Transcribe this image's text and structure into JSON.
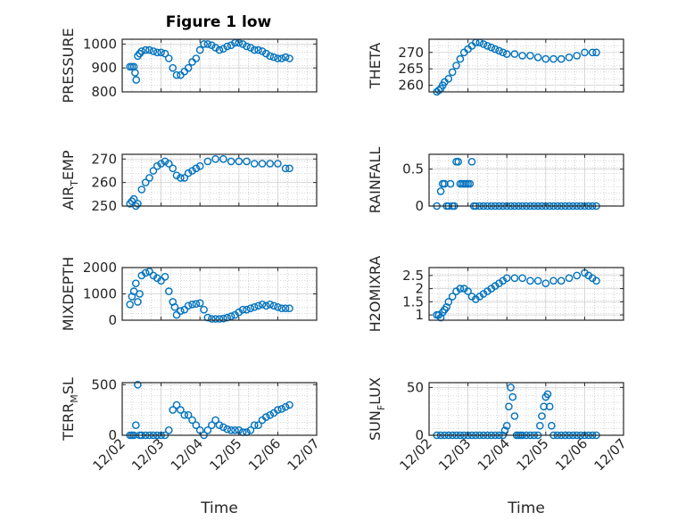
{
  "figure_title": "Figure 1 low",
  "colors": {
    "marker": "#0072BD",
    "axis": "#262626",
    "grid": "#b0b0b0",
    "background": "#ffffff"
  },
  "chart_data": [
    {
      "id": "pressure",
      "type": "scatter",
      "title": "Figure 1 low",
      "ylabel": "PRESSURE",
      "xlabel": "",
      "ylim": [
        800,
        1020
      ],
      "yticks": [
        800,
        900,
        1000
      ],
      "ytick_labels": [
        "800",
        "900",
        "1000"
      ],
      "xticks": [
        0,
        1,
        2,
        3,
        4,
        5
      ],
      "xtick_labels": [],
      "xlim": [
        0,
        5
      ],
      "grid": "minor",
      "x": [
        0.2,
        0.25,
        0.3,
        0.33,
        0.36,
        0.4,
        0.45,
        0.5,
        0.6,
        0.7,
        0.8,
        0.9,
        1.0,
        1.1,
        1.2,
        1.3,
        1.4,
        1.5,
        1.6,
        1.7,
        1.8,
        1.9,
        2.0,
        2.1,
        2.2,
        2.3,
        2.4,
        2.5,
        2.6,
        2.7,
        2.8,
        2.9,
        3.0,
        3.1,
        3.2,
        3.3,
        3.4,
        3.5,
        3.6,
        3.7,
        3.8,
        3.9,
        4.0,
        4.1,
        4.2,
        4.3
      ],
      "y": [
        905,
        905,
        905,
        880,
        850,
        950,
        960,
        970,
        975,
        975,
        970,
        965,
        965,
        960,
        940,
        900,
        870,
        870,
        885,
        900,
        925,
        940,
        975,
        1000,
        1000,
        995,
        985,
        975,
        980,
        990,
        995,
        1005,
        1005,
        1000,
        990,
        985,
        975,
        975,
        970,
        960,
        950,
        945,
        940,
        940,
        945,
        940
      ]
    },
    {
      "id": "theta",
      "type": "scatter",
      "ylabel": "THETA",
      "xlabel": "",
      "ylim": [
        258,
        274
      ],
      "yticks": [
        260,
        265,
        270
      ],
      "ytick_labels": [
        "260",
        "265",
        "270"
      ],
      "xticks": [
        0,
        1,
        2,
        3,
        4,
        5
      ],
      "xtick_labels": [],
      "xlim": [
        0,
        5
      ],
      "grid": "minor",
      "x": [
        0.2,
        0.25,
        0.3,
        0.35,
        0.4,
        0.5,
        0.6,
        0.7,
        0.8,
        0.9,
        1.0,
        1.1,
        1.2,
        1.3,
        1.4,
        1.5,
        1.6,
        1.7,
        1.8,
        1.9,
        2.0,
        2.2,
        2.4,
        2.6,
        2.8,
        3.0,
        3.2,
        3.4,
        3.6,
        3.8,
        4.0,
        4.2,
        4.3
      ],
      "y": [
        258,
        258.5,
        259,
        260,
        261,
        262,
        264,
        266,
        268,
        270,
        271,
        272,
        273,
        273,
        272.5,
        272,
        271.5,
        271,
        270.5,
        270,
        269.5,
        269.5,
        269,
        269,
        268.5,
        268,
        268,
        268,
        268.5,
        269,
        270,
        270,
        270
      ]
    },
    {
      "id": "air-temp",
      "type": "scatter",
      "ylabel": "AIR_TEMP",
      "ylabel_main": "AIR",
      "ylabel_sub": "T",
      "ylabel_tail": "EMP",
      "xlabel": "",
      "ylim": [
        250,
        272
      ],
      "yticks": [
        250,
        260,
        270
      ],
      "ytick_labels": [
        "250",
        "260",
        "270"
      ],
      "xticks": [
        0,
        1,
        2,
        3,
        4,
        5
      ],
      "xtick_labels": [],
      "xlim": [
        0,
        5
      ],
      "grid": "minor",
      "x": [
        0.2,
        0.25,
        0.3,
        0.35,
        0.4,
        0.5,
        0.6,
        0.7,
        0.8,
        0.9,
        1.0,
        1.1,
        1.2,
        1.3,
        1.4,
        1.5,
        1.6,
        1.7,
        1.8,
        1.9,
        2.0,
        2.2,
        2.4,
        2.6,
        2.8,
        3.0,
        3.2,
        3.4,
        3.6,
        3.8,
        4.0,
        4.2,
        4.3
      ],
      "y": [
        251,
        252,
        253,
        250,
        251,
        257,
        260,
        262,
        265,
        267,
        268,
        269,
        268,
        266,
        263,
        262,
        262,
        264,
        265,
        266,
        267,
        269,
        270,
        270,
        269,
        269,
        269,
        268,
        268,
        268,
        268,
        266,
        266
      ]
    },
    {
      "id": "rainfall",
      "type": "scatter",
      "ylabel": "RAINFALL",
      "xlabel": "",
      "ylim": [
        0,
        0.7
      ],
      "yticks": [
        0,
        0.5
      ],
      "ytick_labels": [
        "0",
        "0.5"
      ],
      "xticks": [
        0,
        1,
        2,
        3,
        4,
        5
      ],
      "xtick_labels": [],
      "xlim": [
        0,
        5
      ],
      "grid": "minor",
      "x": [
        0.2,
        0.3,
        0.35,
        0.4,
        0.45,
        0.5,
        0.55,
        0.6,
        0.65,
        0.7,
        0.75,
        0.8,
        0.85,
        0.9,
        0.95,
        1.0,
        1.05,
        1.1,
        1.15,
        1.2,
        1.3,
        1.4,
        1.5,
        1.6,
        1.7,
        1.8,
        1.9,
        2.0,
        2.1,
        2.2,
        2.3,
        2.4,
        2.5,
        2.6,
        2.7,
        2.8,
        2.9,
        3.0,
        3.1,
        3.2,
        3.3,
        3.4,
        3.5,
        3.6,
        3.7,
        3.8,
        3.9,
        4.0,
        4.1,
        4.2,
        4.3
      ],
      "y": [
        0,
        0.2,
        0.3,
        0.3,
        0,
        0,
        0.3,
        0,
        0,
        0.6,
        0.6,
        0.3,
        0.3,
        0.3,
        0.3,
        0.3,
        0.3,
        0.6,
        0,
        0,
        0,
        0,
        0,
        0,
        0,
        0,
        0,
        0,
        0,
        0,
        0,
        0,
        0,
        0,
        0,
        0,
        0,
        0,
        0,
        0,
        0,
        0,
        0,
        0,
        0,
        0,
        0,
        0,
        0,
        0,
        0
      ]
    },
    {
      "id": "mixdepth",
      "type": "scatter",
      "ylabel": "MIXDEPTH",
      "xlabel": "",
      "ylim": [
        0,
        2000
      ],
      "yticks": [
        0,
        1000,
        2000
      ],
      "ytick_labels": [
        "0",
        "1000",
        "2000"
      ],
      "xticks": [
        0,
        1,
        2,
        3,
        4,
        5
      ],
      "xtick_labels": [],
      "xlim": [
        0,
        5
      ],
      "grid": "minor",
      "x": [
        0.2,
        0.25,
        0.3,
        0.35,
        0.4,
        0.45,
        0.5,
        0.6,
        0.7,
        0.8,
        0.9,
        1.0,
        1.1,
        1.2,
        1.3,
        1.35,
        1.4,
        1.5,
        1.6,
        1.7,
        1.8,
        1.9,
        2.0,
        2.1,
        2.2,
        2.3,
        2.4,
        2.5,
        2.6,
        2.7,
        2.8,
        2.9,
        3.0,
        3.1,
        3.2,
        3.3,
        3.4,
        3.5,
        3.6,
        3.7,
        3.8,
        3.9,
        4.0,
        4.1,
        4.2,
        4.3
      ],
      "y": [
        600,
        900,
        1100,
        1400,
        700,
        1000,
        1700,
        1800,
        1850,
        1700,
        1600,
        1500,
        1650,
        1100,
        700,
        500,
        200,
        350,
        400,
        550,
        600,
        620,
        650,
        400,
        100,
        50,
        50,
        50,
        60,
        100,
        150,
        200,
        300,
        400,
        400,
        450,
        500,
        550,
        600,
        550,
        600,
        550,
        500,
        450,
        450,
        450
      ]
    },
    {
      "id": "h2omixra",
      "type": "scatter",
      "ylabel": "H2OMIXRA",
      "xlabel": "",
      "ylim": [
        0.8,
        2.8
      ],
      "yticks": [
        1,
        1.5,
        2,
        2.5
      ],
      "ytick_labels": [
        "1",
        "1.5",
        "2",
        "2.5"
      ],
      "xticks": [
        0,
        1,
        2,
        3,
        4,
        5
      ],
      "xtick_labels": [],
      "xlim": [
        0,
        5
      ],
      "grid": "minor",
      "x": [
        0.2,
        0.25,
        0.3,
        0.35,
        0.4,
        0.45,
        0.5,
        0.6,
        0.7,
        0.8,
        0.9,
        1.0,
        1.1,
        1.2,
        1.3,
        1.4,
        1.5,
        1.6,
        1.7,
        1.8,
        1.9,
        2.0,
        2.2,
        2.4,
        2.6,
        2.8,
        3.0,
        3.2,
        3.4,
        3.6,
        3.8,
        4.0,
        4.1,
        4.2,
        4.3
      ],
      "y": [
        1.0,
        1.0,
        0.9,
        1.1,
        1.2,
        1.3,
        1.5,
        1.7,
        1.9,
        2.0,
        2.0,
        1.9,
        1.7,
        1.6,
        1.7,
        1.8,
        1.9,
        2.0,
        2.1,
        2.2,
        2.3,
        2.4,
        2.4,
        2.4,
        2.3,
        2.3,
        2.2,
        2.3,
        2.3,
        2.4,
        2.5,
        2.6,
        2.5,
        2.4,
        2.3
      ]
    },
    {
      "id": "terr-msl",
      "type": "scatter",
      "ylabel": "TERR_MSL",
      "ylabel_main": "TERR",
      "ylabel_sub": "M",
      "ylabel_tail": "SL",
      "xlabel": "Time",
      "ylim": [
        0,
        520
      ],
      "yticks": [
        0,
        500
      ],
      "ytick_labels": [
        "0",
        "500"
      ],
      "xticks": [
        0,
        1,
        2,
        3,
        4,
        5
      ],
      "xtick_labels": [
        "12/02",
        "12/03",
        "12/04",
        "12/05",
        "12/06",
        "12/07"
      ],
      "xlim": [
        0,
        5
      ],
      "grid": "minor",
      "x": [
        0.2,
        0.25,
        0.3,
        0.35,
        0.4,
        0.45,
        0.5,
        0.6,
        0.7,
        0.8,
        0.9,
        1.0,
        1.1,
        1.2,
        1.3,
        1.4,
        1.5,
        1.6,
        1.7,
        1.8,
        1.9,
        2.0,
        2.1,
        2.2,
        2.3,
        2.4,
        2.5,
        2.6,
        2.7,
        2.8,
        2.9,
        3.0,
        3.1,
        3.2,
        3.3,
        3.4,
        3.5,
        3.6,
        3.7,
        3.8,
        3.9,
        4.0,
        4.1,
        4.2,
        4.3
      ],
      "y": [
        0,
        0,
        0,
        100,
        500,
        0,
        0,
        0,
        0,
        0,
        0,
        0,
        0,
        50,
        250,
        300,
        250,
        200,
        200,
        150,
        100,
        50,
        0,
        50,
        100,
        150,
        100,
        80,
        60,
        50,
        50,
        50,
        30,
        30,
        50,
        100,
        100,
        150,
        180,
        200,
        220,
        250,
        260,
        280,
        300
      ]
    },
    {
      "id": "sun-flux",
      "type": "scatter",
      "ylabel": "SUN_FLUX",
      "ylabel_main": "SUN",
      "ylabel_sub": "F",
      "ylabel_tail": "LUX",
      "xlabel": "Time",
      "ylim": [
        0,
        55
      ],
      "yticks": [
        0,
        50
      ],
      "ytick_labels": [
        "0",
        "50"
      ],
      "xticks": [
        0,
        1,
        2,
        3,
        4,
        5
      ],
      "xtick_labels": [
        "12/02",
        "12/03",
        "12/04",
        "12/05",
        "12/06",
        "12/07"
      ],
      "xlim": [
        0,
        5
      ],
      "grid": "minor",
      "x": [
        0.2,
        0.3,
        0.4,
        0.5,
        0.6,
        0.7,
        0.8,
        0.9,
        1.0,
        1.1,
        1.2,
        1.3,
        1.4,
        1.5,
        1.6,
        1.7,
        1.8,
        1.9,
        1.95,
        2.0,
        2.05,
        2.1,
        2.15,
        2.2,
        2.25,
        2.3,
        2.35,
        2.4,
        2.5,
        2.6,
        2.7,
        2.8,
        2.85,
        2.9,
        2.95,
        3.0,
        3.05,
        3.1,
        3.15,
        3.2,
        3.3,
        3.4,
        3.5,
        3.6,
        3.7,
        3.8,
        3.9,
        4.0,
        4.1,
        4.2,
        4.3
      ],
      "y": [
        0,
        0,
        0,
        0,
        0,
        0,
        0,
        0,
        0,
        0,
        0,
        0,
        0,
        0,
        0,
        0,
        0,
        0,
        5,
        10,
        30,
        50,
        40,
        20,
        0,
        0,
        0,
        0,
        0,
        0,
        0,
        0,
        10,
        20,
        30,
        40,
        43,
        30,
        10,
        0,
        0,
        0,
        0,
        0,
        0,
        0,
        0,
        0,
        0,
        0,
        0
      ]
    }
  ]
}
